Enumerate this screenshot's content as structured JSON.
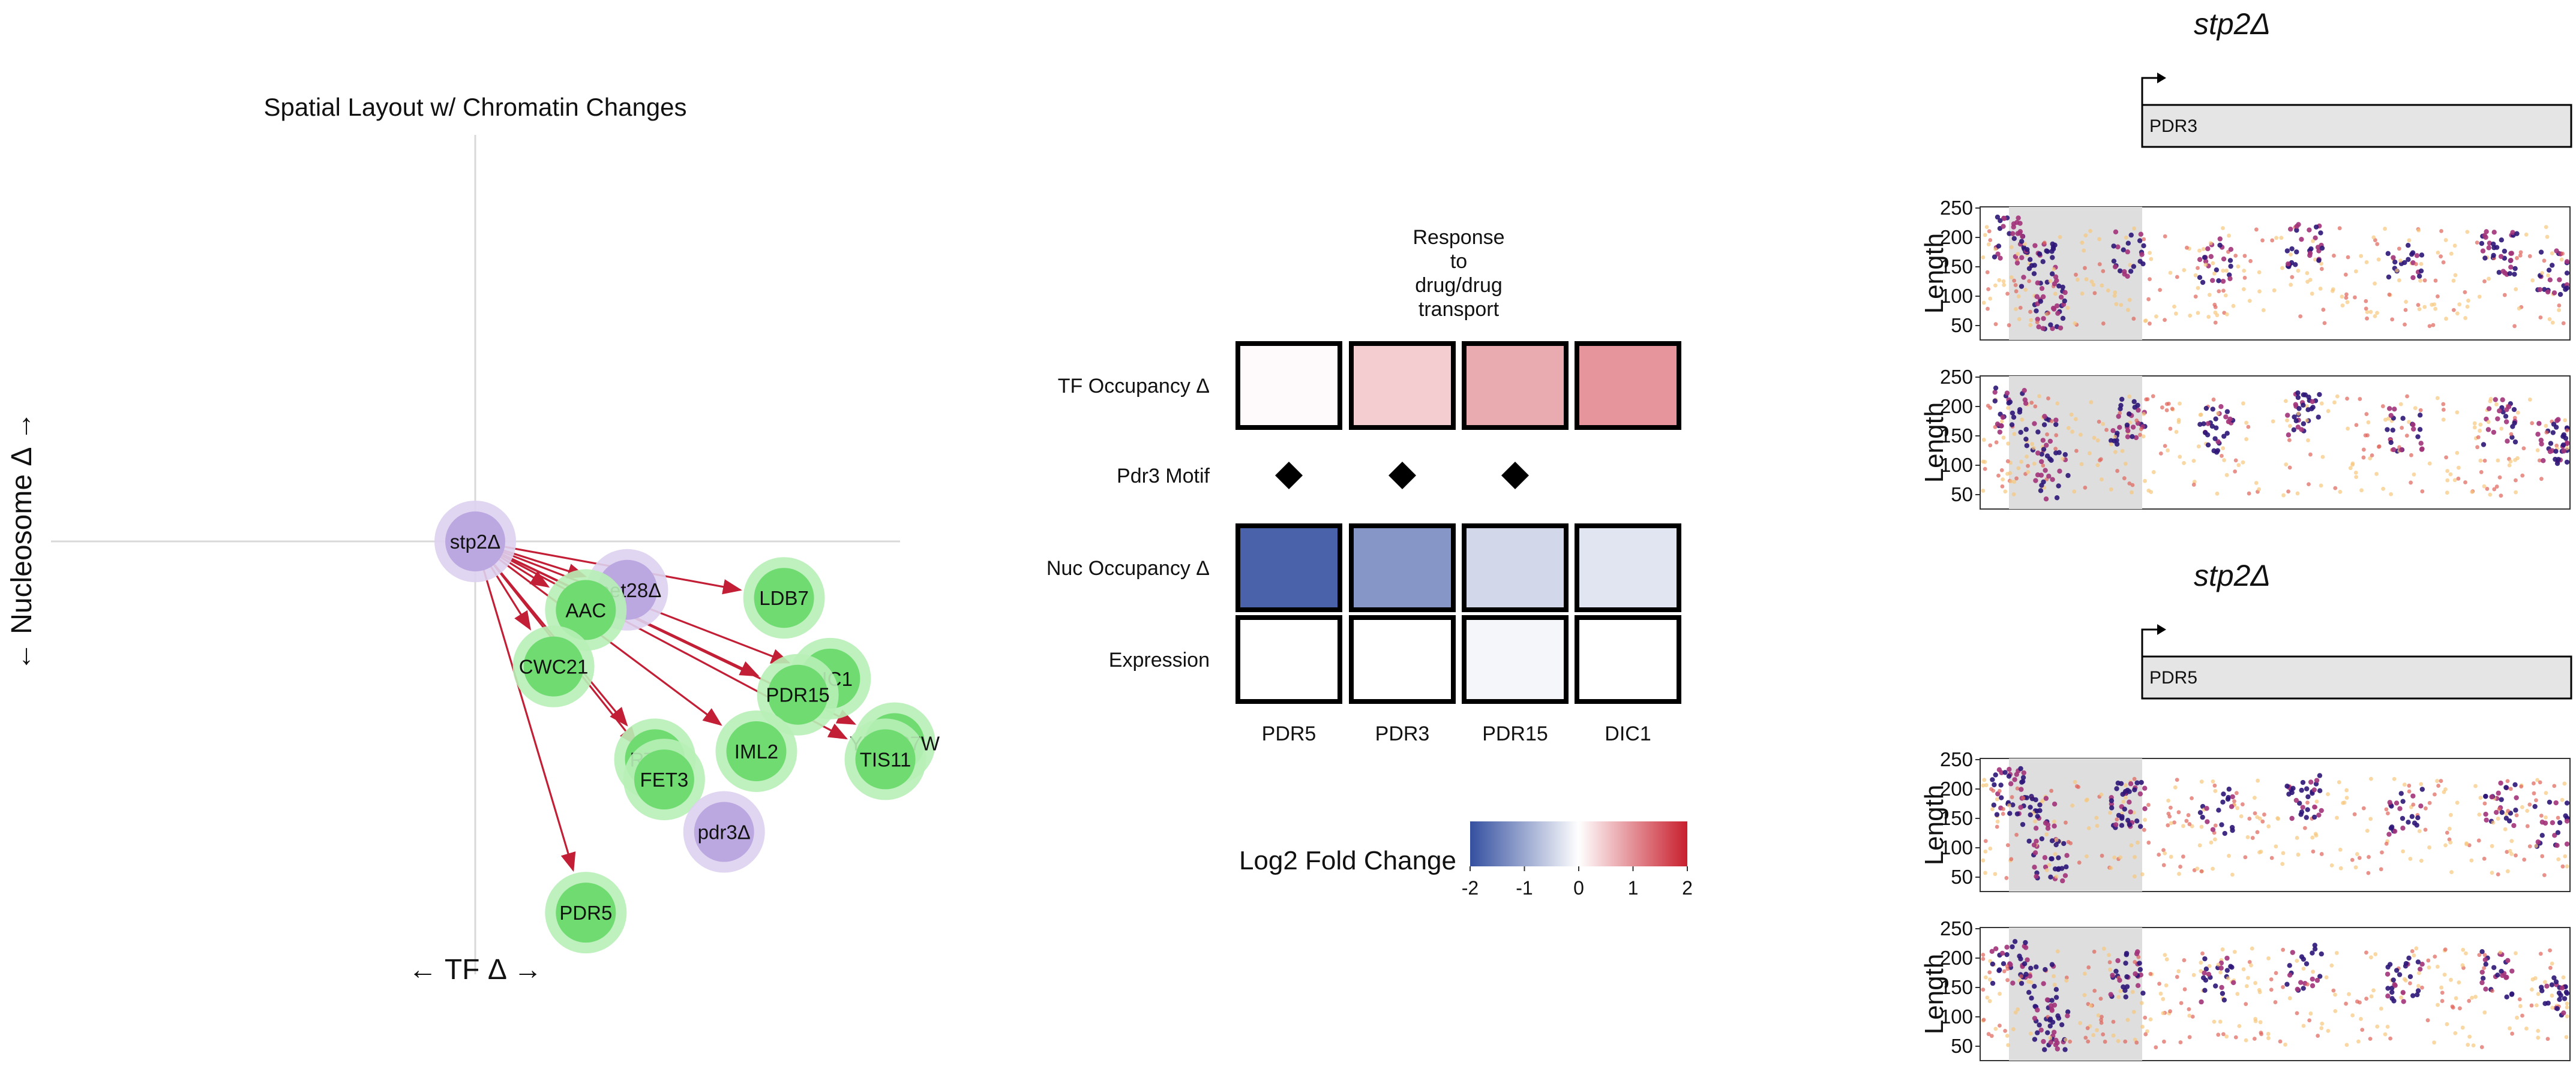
{
  "colors": {
    "tf_node": "#6fdb71",
    "tf_halo": "#b7efb6",
    "mut_node": "#bca8e0",
    "mut_halo": "#ddd2f0",
    "edge": "#c21f36",
    "axis_grid": "#d9d9d9",
    "scale_low": "#3550a0",
    "scale_mid": "#ffffff",
    "scale_high": "#c81f2d",
    "panel_highlight": "#dedede",
    "gene_box": "#e5e5e5",
    "dot_low": "#f6c77e",
    "dot_high": "#2d1678"
  },
  "network": {
    "title": "Spatial Layout w/ Chromatin Changes",
    "x_axis_label": "← TF Δ →",
    "y_axis_label": "← Nucleosome Δ →",
    "source": "stp2Δ",
    "nodes": [
      {
        "label": "stp2Δ",
        "kind": "mutant",
        "x": 0.0,
        "y": 0.0
      },
      {
        "label": "met28Δ",
        "kind": "mutant",
        "x": 0.33,
        "y": -0.12
      },
      {
        "label": "AAC",
        "kind": "tf",
        "x": 0.24,
        "y": -0.17
      },
      {
        "label": "LDB7",
        "kind": "tf",
        "x": 0.67,
        "y": -0.14
      },
      {
        "label": "CWC21",
        "kind": "tf",
        "x": 0.17,
        "y": -0.31
      },
      {
        "label": "DIC1",
        "kind": "tf",
        "x": 0.77,
        "y": -0.34
      },
      {
        "label": "PDR15",
        "kind": "tf",
        "x": 0.7,
        "y": -0.38
      },
      {
        "label": "YLR137W",
        "kind": "tf",
        "x": 0.91,
        "y": -0.5
      },
      {
        "label": "TIS11",
        "kind": "tf",
        "x": 0.89,
        "y": -0.54
      },
      {
        "label": "IML2",
        "kind": "tf",
        "x": 0.61,
        "y": -0.52
      },
      {
        "label": "RTS3",
        "kind": "tf",
        "x": 0.39,
        "y": -0.54
      },
      {
        "label": "FET3",
        "kind": "tf",
        "x": 0.41,
        "y": -0.59
      },
      {
        "label": "pdr3Δ",
        "kind": "mutant",
        "x": 0.54,
        "y": -0.72
      },
      {
        "label": "PDR5",
        "kind": "tf",
        "x": 0.24,
        "y": -0.92
      }
    ],
    "edges_from_source": [
      "met28Δ",
      "AAC",
      "LDB7",
      "CWC21",
      "DIC1",
      "PDR15",
      "YLR137W",
      "TIS11",
      "IML2",
      "RTS3",
      "FET3",
      "PDR5"
    ]
  },
  "chart_data": {
    "type": "heatmap",
    "group_label": "Response\nto\ndrug/drug\ntransport",
    "columns": [
      "PDR5",
      "PDR3",
      "PDR15",
      "DIC1"
    ],
    "rows": [
      {
        "label": "TF Occupancy Δ",
        "values": [
          0.05,
          0.45,
          0.75,
          0.95
        ]
      },
      {
        "label": "Nuc Occupancy Δ",
        "values": [
          -1.8,
          -1.2,
          -0.45,
          -0.3
        ]
      },
      {
        "label": "Expression",
        "values": [
          0.0,
          0.0,
          -0.1,
          0.0
        ]
      }
    ],
    "motif": {
      "label": "Pdr3 Motif",
      "present": [
        true,
        true,
        true,
        false
      ]
    },
    "legend": {
      "title": "Log2 Fold Change",
      "min": -2,
      "max": 2,
      "ticks": [
        "-2",
        "-1",
        "0",
        "1",
        "2"
      ]
    }
  },
  "tracks": {
    "panels": [
      {
        "title": "stp2Δ",
        "gene": "PDR3"
      },
      {
        "title": "stp2Δ",
        "gene": "PDR5"
      }
    ],
    "y_label": "Length",
    "y_ticks": [
      "250",
      "200",
      "150",
      "100",
      "50"
    ]
  }
}
